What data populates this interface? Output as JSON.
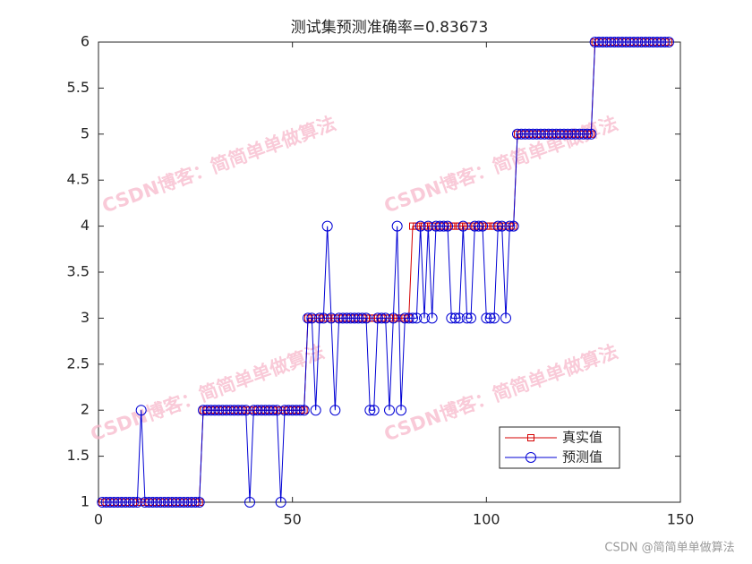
{
  "chart_data": {
    "type": "line",
    "title": "测试集预测准确率=0.83673",
    "x": [
      1,
      2,
      3,
      4,
      5,
      6,
      7,
      8,
      9,
      10,
      11,
      12,
      13,
      14,
      15,
      16,
      17,
      18,
      19,
      20,
      21,
      22,
      23,
      24,
      25,
      26,
      27,
      28,
      29,
      30,
      31,
      32,
      33,
      34,
      35,
      36,
      37,
      38,
      39,
      40,
      41,
      42,
      43,
      44,
      45,
      46,
      47,
      48,
      49,
      50,
      51,
      52,
      53,
      54,
      55,
      56,
      57,
      58,
      59,
      60,
      61,
      62,
      63,
      64,
      65,
      66,
      67,
      68,
      69,
      70,
      71,
      72,
      73,
      74,
      75,
      76,
      77,
      78,
      79,
      80,
      81,
      82,
      83,
      84,
      85,
      86,
      87,
      88,
      89,
      90,
      91,
      92,
      93,
      94,
      95,
      96,
      97,
      98,
      99,
      100,
      101,
      102,
      103,
      104,
      105,
      106,
      107,
      108,
      109,
      110,
      111,
      112,
      113,
      114,
      115,
      116,
      117,
      118,
      119,
      120,
      121,
      122,
      123,
      124,
      125,
      126,
      127,
      128,
      129,
      130,
      131,
      132,
      133,
      134,
      135,
      136,
      137,
      138,
      139,
      140,
      141,
      142,
      143,
      144,
      145,
      146,
      147
    ],
    "series": [
      {
        "name": "真实值",
        "color": "#d40000",
        "marker": "square",
        "values": [
          1,
          1,
          1,
          1,
          1,
          1,
          1,
          1,
          1,
          1,
          1,
          1,
          1,
          1,
          1,
          1,
          1,
          1,
          1,
          1,
          1,
          1,
          1,
          1,
          1,
          1,
          2,
          2,
          2,
          2,
          2,
          2,
          2,
          2,
          2,
          2,
          2,
          2,
          2,
          2,
          2,
          2,
          2,
          2,
          2,
          2,
          2,
          2,
          2,
          2,
          2,
          2,
          2,
          3,
          3,
          3,
          3,
          3,
          3,
          3,
          3,
          3,
          3,
          3,
          3,
          3,
          3,
          3,
          3,
          3,
          3,
          3,
          3,
          3,
          3,
          3,
          3,
          3,
          3,
          3,
          4,
          4,
          4,
          4,
          4,
          4,
          4,
          4,
          4,
          4,
          4,
          4,
          4,
          4,
          4,
          4,
          4,
          4,
          4,
          4,
          4,
          4,
          4,
          4,
          4,
          4,
          4,
          5,
          5,
          5,
          5,
          5,
          5,
          5,
          5,
          5,
          5,
          5,
          5,
          5,
          5,
          5,
          5,
          5,
          5,
          5,
          5,
          6,
          6,
          6,
          6,
          6,
          6,
          6,
          6,
          6,
          6,
          6,
          6,
          6,
          6,
          6,
          6,
          6,
          6,
          6,
          6
        ]
      },
      {
        "name": "预测值",
        "color": "#0000d4",
        "marker": "circle",
        "values": [
          1,
          1,
          1,
          1,
          1,
          1,
          1,
          1,
          1,
          1,
          2,
          1,
          1,
          1,
          1,
          1,
          1,
          1,
          1,
          1,
          1,
          1,
          1,
          1,
          1,
          1,
          2,
          2,
          2,
          2,
          2,
          2,
          2,
          2,
          2,
          2,
          2,
          2,
          1,
          2,
          2,
          2,
          2,
          2,
          2,
          2,
          1,
          2,
          2,
          2,
          2,
          2,
          2,
          3,
          3,
          2,
          3,
          3,
          4,
          3,
          2,
          3,
          3,
          3,
          3,
          3,
          3,
          3,
          3,
          2,
          2,
          3,
          3,
          3,
          2,
          3,
          4,
          2,
          3,
          3,
          3,
          3,
          4,
          3,
          4,
          3,
          4,
          4,
          4,
          4,
          3,
          3,
          3,
          4,
          3,
          3,
          4,
          4,
          4,
          3,
          3,
          3,
          4,
          4,
          3,
          4,
          4,
          5,
          5,
          5,
          5,
          5,
          5,
          5,
          5,
          5,
          5,
          5,
          5,
          5,
          5,
          5,
          5,
          5,
          5,
          5,
          5,
          6,
          6,
          6,
          6,
          6,
          6,
          6,
          6,
          6,
          6,
          6,
          6,
          6,
          6,
          6,
          6,
          6,
          6,
          6,
          6
        ]
      }
    ],
    "xlim": [
      0,
      150
    ],
    "xticks": [
      0,
      50,
      100,
      150
    ],
    "ylim": [
      1,
      6
    ],
    "yticks": [
      1,
      1.5,
      2,
      2.5,
      3,
      3.5,
      4,
      4.5,
      5,
      5.5,
      6
    ],
    "grid": false,
    "legend": "southeast"
  },
  "watermark": "CSDN博客：简简单单做算法",
  "footer": "CSDN @简简单单做算法"
}
